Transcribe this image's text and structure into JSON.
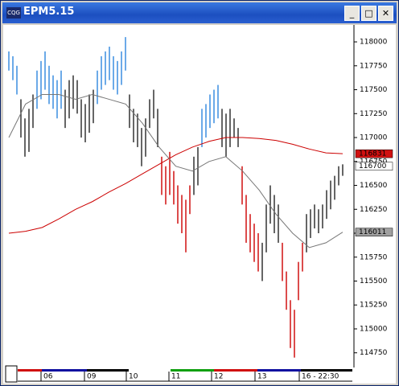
{
  "window": {
    "title": "EPM5.15"
  },
  "chart_data": {
    "type": "range-bar",
    "ylim": [
      114630,
      118135
    ],
    "yticks": [
      114750,
      115000,
      115250,
      115500,
      115750,
      116000,
      116250,
      116500,
      116750,
      117000,
      117250,
      117500,
      117750,
      118000
    ],
    "x_labels": [
      "06",
      "09",
      "10",
      "11",
      "12",
      "13",
      "16 - 22:30"
    ],
    "lows": [
      117700,
      117600,
      117450,
      117000,
      116800,
      116850,
      117100,
      117300,
      117400,
      117500,
      117350,
      117300,
      117200,
      117300,
      117100,
      117200,
      117300,
      117250,
      117000,
      116950,
      117050,
      117150,
      117350,
      117500,
      117550,
      117600,
      117500,
      117450,
      117550,
      117700,
      117100,
      116950,
      116900,
      116700,
      116800,
      117100,
      117200,
      116900,
      116400,
      116300,
      116400,
      116300,
      116100,
      116000,
      115800,
      116200,
      116400,
      116500,
      116900,
      117000,
      117100,
      117150,
      117200,
      116900,
      116800,
      116900,
      117000,
      116900,
      116300,
      115900,
      115800,
      115700,
      115600,
      115500,
      115800,
      116100,
      116000,
      115900,
      115500,
      115200,
      114800,
      114700,
      115300,
      115600,
      115800,
      115950,
      116050,
      116000,
      116050,
      116150,
      116250,
      116350,
      116500,
      116600
    ],
    "highs": [
      117900,
      117850,
      117750,
      117400,
      117200,
      117300,
      117450,
      117700,
      117800,
      117900,
      117750,
      117650,
      117600,
      117700,
      117500,
      117600,
      117650,
      117600,
      117400,
      117350,
      117450,
      117500,
      117700,
      117850,
      117900,
      117950,
      117850,
      117800,
      117900,
      118050,
      117450,
      117300,
      117250,
      117100,
      117200,
      117400,
      117500,
      117300,
      116800,
      116700,
      116850,
      116650,
      116500,
      116400,
      116350,
      116500,
      116800,
      116900,
      117300,
      117350,
      117450,
      117500,
      117550,
      117300,
      117250,
      117300,
      117200,
      117100,
      116700,
      116400,
      116200,
      116100,
      116000,
      115900,
      116300,
      116500,
      116400,
      116300,
      115900,
      115600,
      115300,
      115200,
      115700,
      115900,
      116200,
      116250,
      116300,
      116250,
      116300,
      116450,
      116550,
      116600,
      116700,
      116720
    ],
    "bar_colors": [
      "#3a8ee0",
      "#3a8ee0",
      "#3a8ee0",
      "#333333",
      "#333333",
      "#333333",
      "#333333",
      "#3a8ee0",
      "#3a8ee0",
      "#3a8ee0",
      "#3a8ee0",
      "#3a8ee0",
      "#3a8ee0",
      "#3a8ee0",
      "#333333",
      "#333333",
      "#333333",
      "#333333",
      "#333333",
      "#333333",
      "#333333",
      "#333333",
      "#3a8ee0",
      "#3a8ee0",
      "#3a8ee0",
      "#3a8ee0",
      "#3a8ee0",
      "#3a8ee0",
      "#3a8ee0",
      "#3a8ee0",
      "#333333",
      "#333333",
      "#333333",
      "#333333",
      "#333333",
      "#333333",
      "#333333",
      "#333333",
      "#d01010",
      "#d01010",
      "#d01010",
      "#d01010",
      "#d01010",
      "#d01010",
      "#d01010",
      "#d01010",
      "#333333",
      "#333333",
      "#3a8ee0",
      "#3a8ee0",
      "#3a8ee0",
      "#3a8ee0",
      "#3a8ee0",
      "#333333",
      "#333333",
      "#333333",
      "#333333",
      "#333333",
      "#d01010",
      "#d01010",
      "#d01010",
      "#d01010",
      "#d01010",
      "#333333",
      "#333333",
      "#333333",
      "#333333",
      "#333333",
      "#d01010",
      "#d01010",
      "#d01010",
      "#d01010",
      "#d01010",
      "#d01010",
      "#333333",
      "#333333",
      "#333333",
      "#333333",
      "#333333",
      "#333333",
      "#333333",
      "#333333",
      "#333333",
      "#333333"
    ],
    "lines": [
      {
        "color": "#cc0000",
        "values": [
          116000,
          116020,
          116060,
          116150,
          116250,
          116330,
          116430,
          116520,
          116620,
          116720,
          116820,
          116900,
          116960,
          117000,
          117000,
          116990,
          116970,
          116930,
          116880,
          116840,
          116831
        ]
      },
      {
        "color": "#777777",
        "values": [
          117000,
          117350,
          117450,
          117450,
          117400,
          117450,
          117400,
          117350,
          117150,
          116900,
          116700,
          116650,
          116750,
          116800,
          116650,
          116450,
          116200,
          116000,
          115850,
          115900,
          116011
        ]
      }
    ],
    "value_tags": [
      {
        "value": 116831,
        "color": "#d01010"
      },
      {
        "value": 116700,
        "color": "#ffffff"
      },
      {
        "value": 116011,
        "color": "#a0a0a0"
      }
    ]
  }
}
